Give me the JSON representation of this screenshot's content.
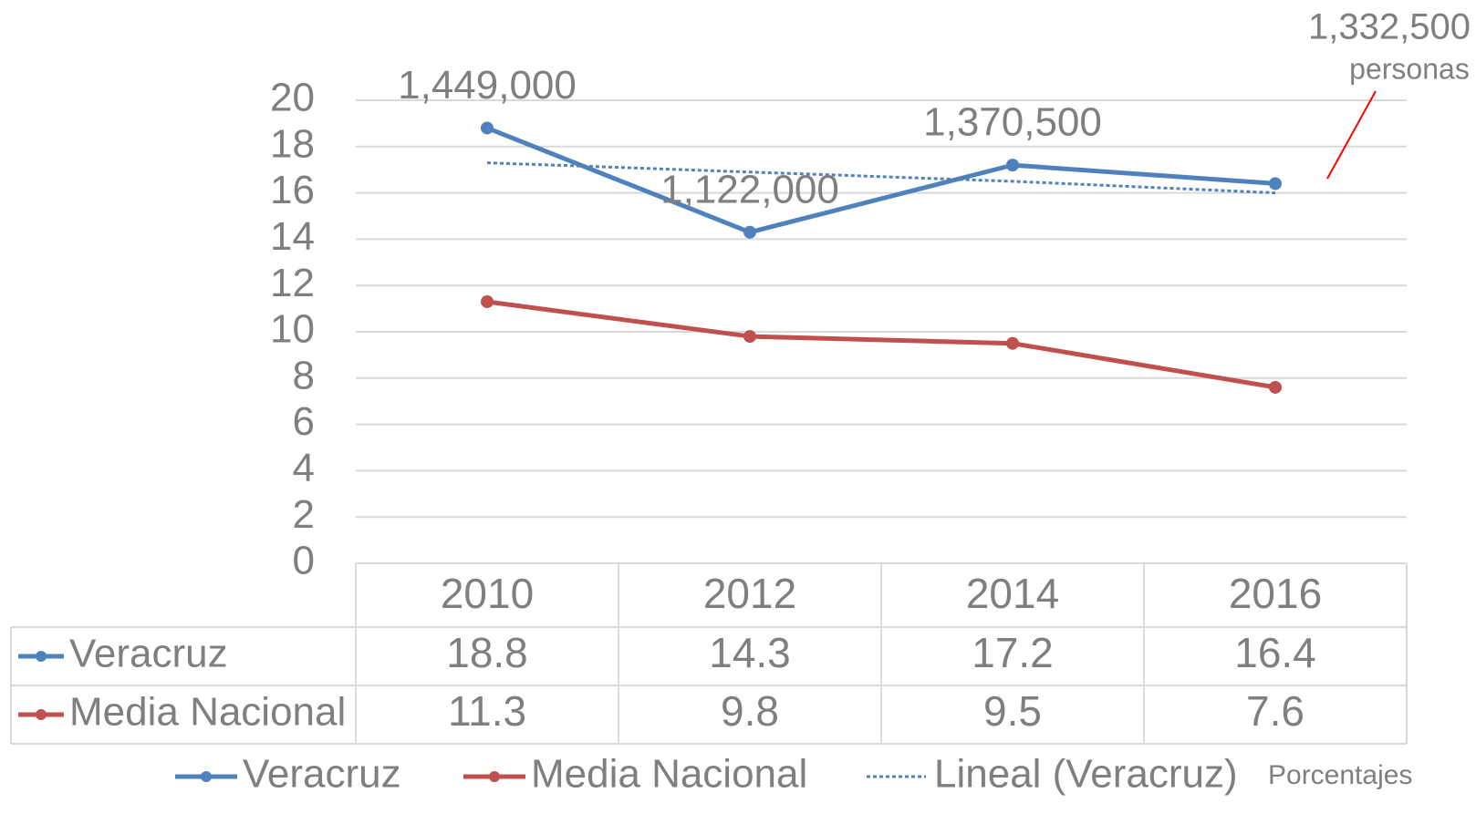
{
  "chart_data": {
    "type": "line",
    "categories": [
      "2010",
      "2012",
      "2014",
      "2016"
    ],
    "series": [
      {
        "name": "Veracruz",
        "color": "#4f81bd",
        "values": [
          18.8,
          14.3,
          17.2,
          16.4
        ]
      },
      {
        "name": "Media Nacional",
        "color": "#c0504d",
        "values": [
          11.3,
          9.8,
          9.5,
          7.6
        ]
      }
    ],
    "trendline": {
      "name": "Lineal (Veracruz)",
      "color": "#4f81bd",
      "values": [
        17.3,
        16.9,
        16.5,
        16.0
      ]
    },
    "point_labels": [
      "1,449,000",
      "1,122,000",
      "1,370,500"
    ],
    "callout": {
      "text": "1,332,500",
      "subtext": "personas",
      "color": "#ff0000"
    },
    "unit_note": "Porcentajes",
    "ylim": [
      0,
      20
    ],
    "yticks": [
      0,
      2,
      4,
      6,
      8,
      10,
      12,
      14,
      16,
      18,
      20
    ],
    "grid": true,
    "data_table": true
  }
}
